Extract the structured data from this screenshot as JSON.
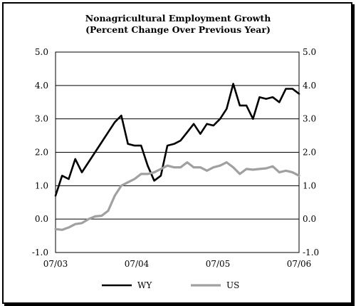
{
  "chart_data": {
    "type": "line",
    "title": "Nonagricultural Employment Growth",
    "subtitle": "(Percent Change Over Previous Year)",
    "ylim": [
      -1.0,
      5.0
    ],
    "y_ticks": [
      "5.0",
      "4.0",
      "3.0",
      "2.0",
      "1.0",
      "0.0",
      "-1.0"
    ],
    "x_tick_labels": [
      "07/03",
      "07/04",
      "07/05",
      "07/06"
    ],
    "grid": "horizontal",
    "legend_position": "bottom",
    "series": [
      {
        "name": "WY",
        "color": "#000000",
        "values": [
          0.7,
          1.3,
          1.2,
          1.8,
          1.4,
          1.7,
          2.0,
          2.3,
          2.6,
          2.9,
          3.1,
          2.25,
          2.2,
          2.2,
          1.6,
          1.15,
          1.3,
          2.2,
          2.25,
          2.35,
          2.6,
          2.85,
          2.55,
          2.85,
          2.8,
          3.0,
          3.3,
          4.05,
          3.4,
          3.4,
          3.0,
          3.65,
          3.6,
          3.65,
          3.5,
          3.9,
          3.9,
          3.75
        ]
      },
      {
        "name": "US",
        "color": "#a0a0a0",
        "values": [
          -0.3,
          -0.32,
          -0.25,
          -0.15,
          -0.12,
          0.0,
          0.08,
          0.1,
          0.25,
          0.7,
          1.0,
          1.1,
          1.2,
          1.35,
          1.35,
          1.4,
          1.5,
          1.6,
          1.55,
          1.55,
          1.7,
          1.55,
          1.55,
          1.45,
          1.55,
          1.6,
          1.7,
          1.55,
          1.35,
          1.5,
          1.48,
          1.5,
          1.52,
          1.58,
          1.4,
          1.45,
          1.4,
          1.3
        ]
      }
    ]
  }
}
